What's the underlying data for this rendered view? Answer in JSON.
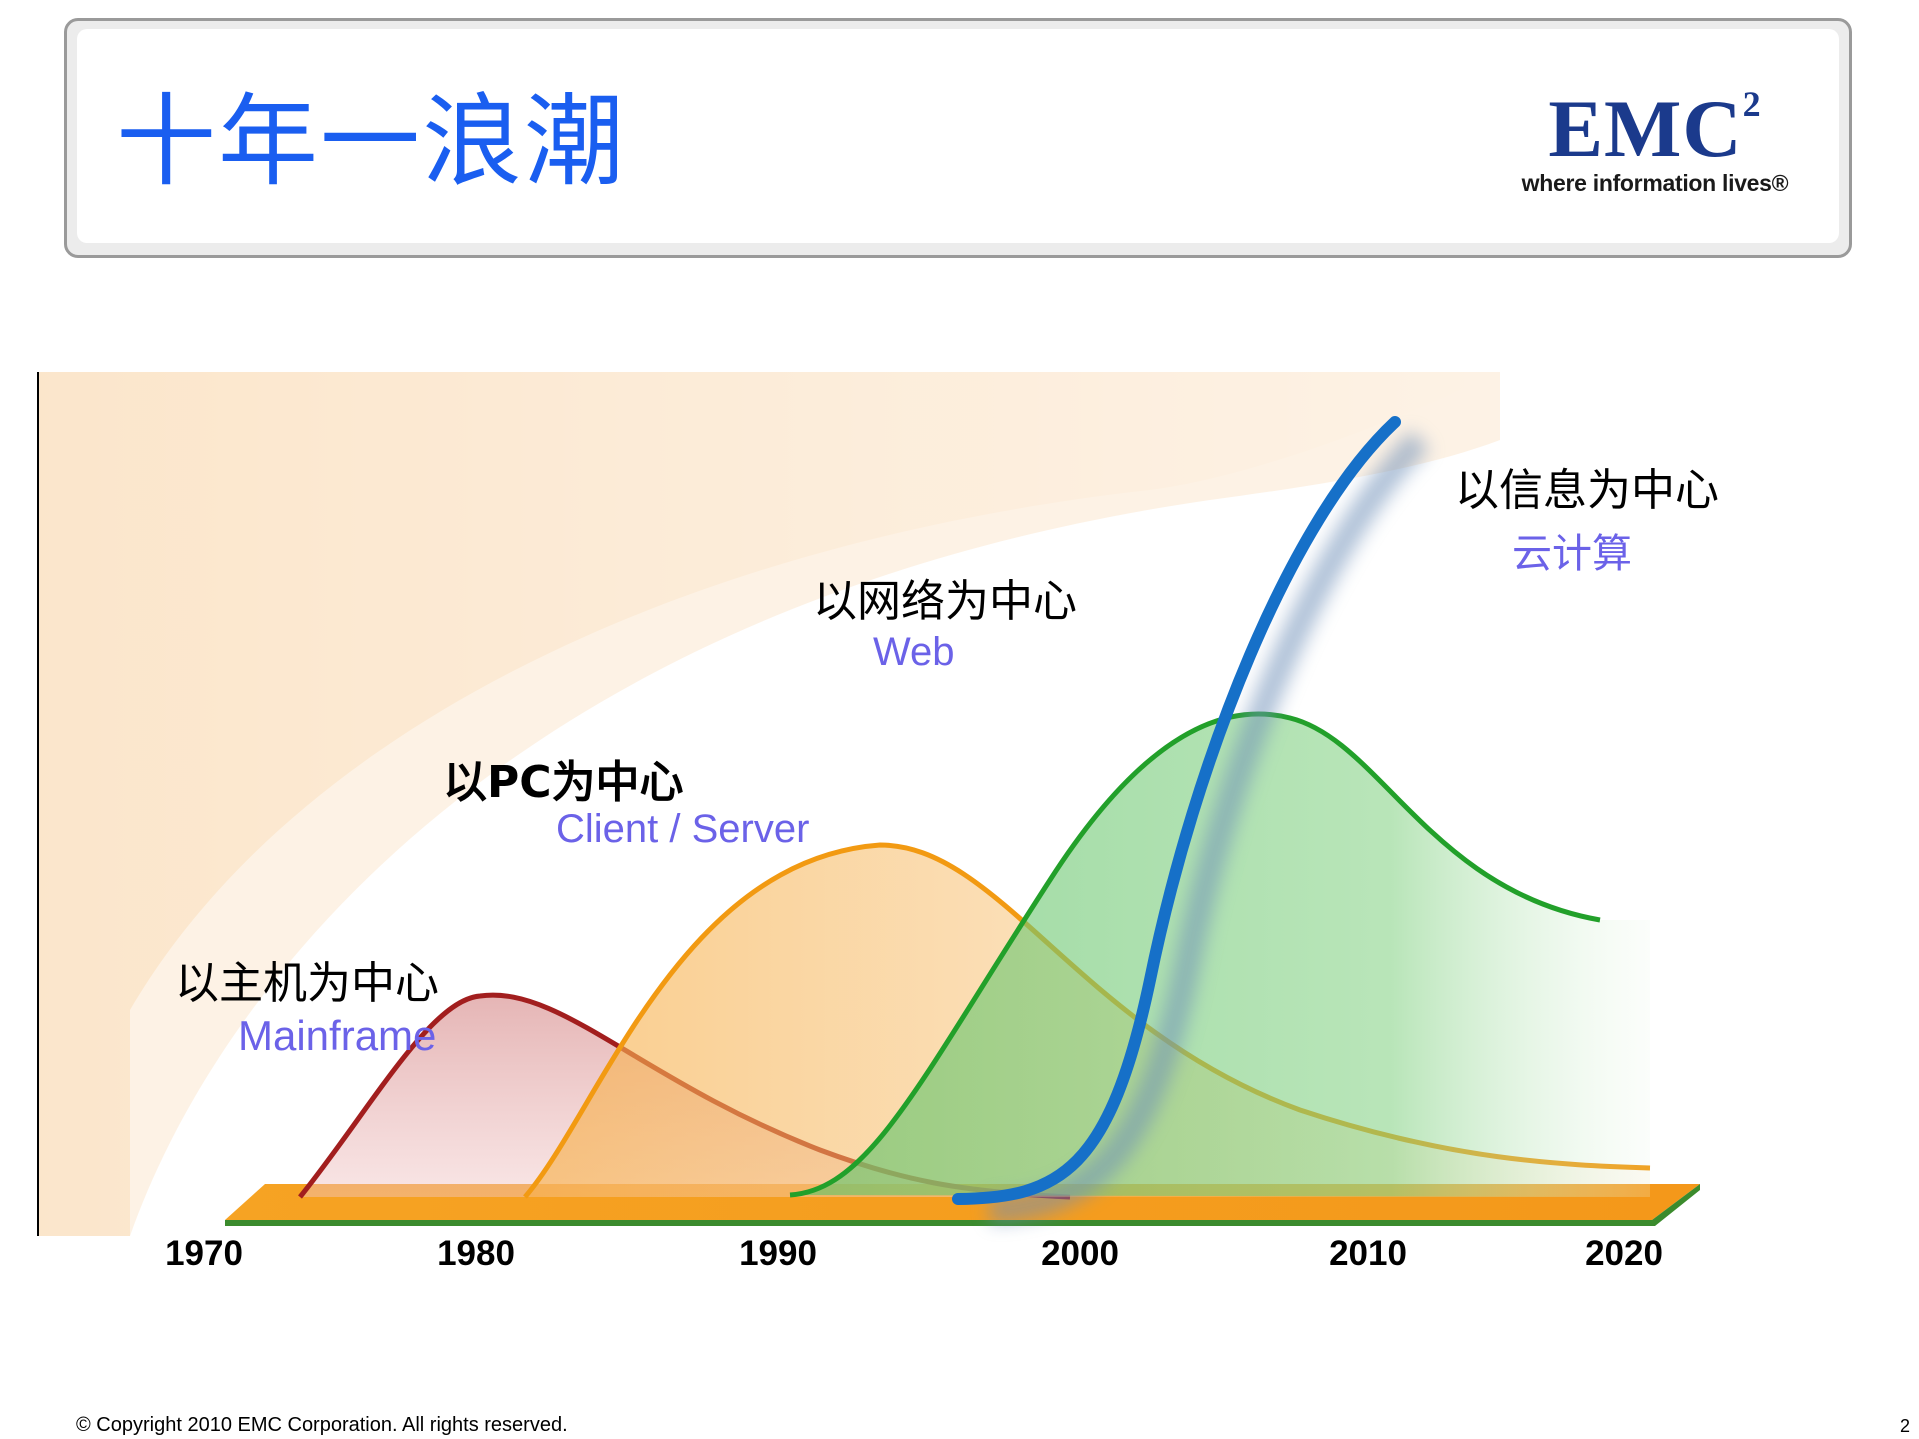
{
  "slide": {
    "title": "十年一浪潮",
    "page_number": "2"
  },
  "logo": {
    "mark": "EMC",
    "superscript": "2",
    "tagline": "where information lives®"
  },
  "footer": {
    "copyright": "© Copyright 2010 EMC Corporation. All rights reserved."
  },
  "colors": {
    "title": "#1a5ef0",
    "subtitle": "#6b62e8",
    "mainframe": "#a21e1e",
    "pc": "#f29a12",
    "web": "#22a02a",
    "info": "#1670c8",
    "base": "#f5a11e"
  },
  "chart_data": {
    "type": "line",
    "title": "十年一浪潮",
    "x_ticks": [
      "1970",
      "1980",
      "1990",
      "2000",
      "2010",
      "2020"
    ],
    "xlim": [
      1970,
      2020
    ],
    "series": [
      {
        "key": "mainframe",
        "label": "以主机为中心",
        "sublabel": "Mainframe",
        "start": 1974,
        "peak_year": 1982,
        "peak_level": 0.32,
        "end": 2000
      },
      {
        "key": "pc",
        "label": "以PC为中心",
        "sublabel": "Client / Server",
        "start": 1981,
        "peak_year": 1993,
        "peak_level": 0.55,
        "end": 2020
      },
      {
        "key": "web",
        "label": "以网络为中心",
        "sublabel": "Web",
        "start": 1990,
        "peak_year": 2006,
        "peak_level": 0.81,
        "end": 2020
      },
      {
        "key": "info",
        "label": "以信息为中心",
        "sublabel": "云计算",
        "start": 1996,
        "peak_year": 2011,
        "peak_level": 1.0,
        "end": 2011
      }
    ]
  }
}
